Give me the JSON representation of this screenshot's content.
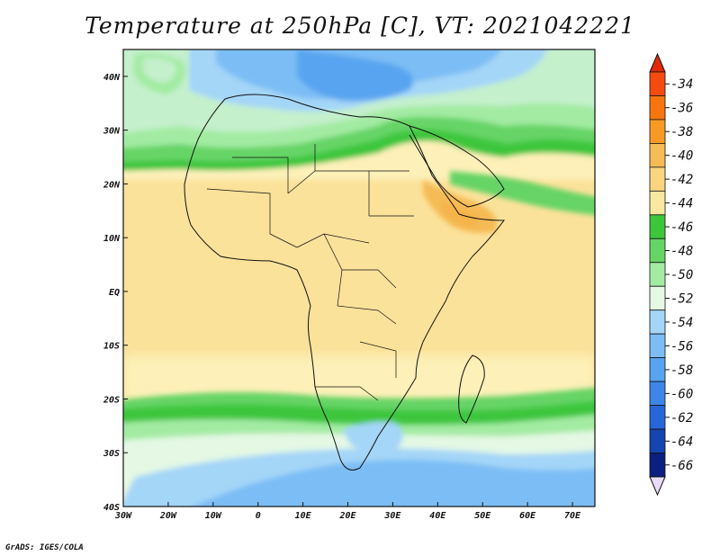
{
  "title": "Temperature at 250hPa [C], VT: 2021042221",
  "credit": "GrADS: IGES/COLA",
  "map": {
    "lon_range": [
      -30,
      75
    ],
    "lat_range": [
      -40,
      45
    ],
    "lon_ticks": [
      "30W",
      "20W",
      "10W",
      "0",
      "10E",
      "20E",
      "30E",
      "40E",
      "50E",
      "60E",
      "70E"
    ],
    "lat_ticks": [
      "40S",
      "30S",
      "20S",
      "10S",
      "EQ",
      "10N",
      "20N",
      "30N",
      "40N"
    ],
    "base_color": "#fbe29a",
    "features": [
      {
        "name": "north-cold-region",
        "color": "#c4f0cc"
      },
      {
        "name": "mediterranean-blue",
        "color": "#6aa6f0"
      },
      {
        "name": "south-cold-region",
        "color": "#a4d6f8"
      },
      {
        "name": "horn-warm-spot",
        "color": "#f5b34a"
      }
    ]
  },
  "colorbar": {
    "labels": [
      "-34",
      "-36",
      "-38",
      "-40",
      "-42",
      "-44",
      "-46",
      "-48",
      "-50",
      "-52",
      "-54",
      "-56",
      "-58",
      "-60",
      "-62",
      "-64",
      "-66"
    ],
    "colors": [
      "#f54b0f",
      "#f7750f",
      "#f79a25",
      "#f5bb55",
      "#fad57f",
      "#fbe8a0",
      "#3cc63c",
      "#66d466",
      "#a3eba3",
      "#e4f8e4",
      "#a4d6f8",
      "#7cbdf5",
      "#58a4f0",
      "#3d86e8",
      "#2766d8",
      "#1445b0",
      "#0a1f80"
    ]
  }
}
